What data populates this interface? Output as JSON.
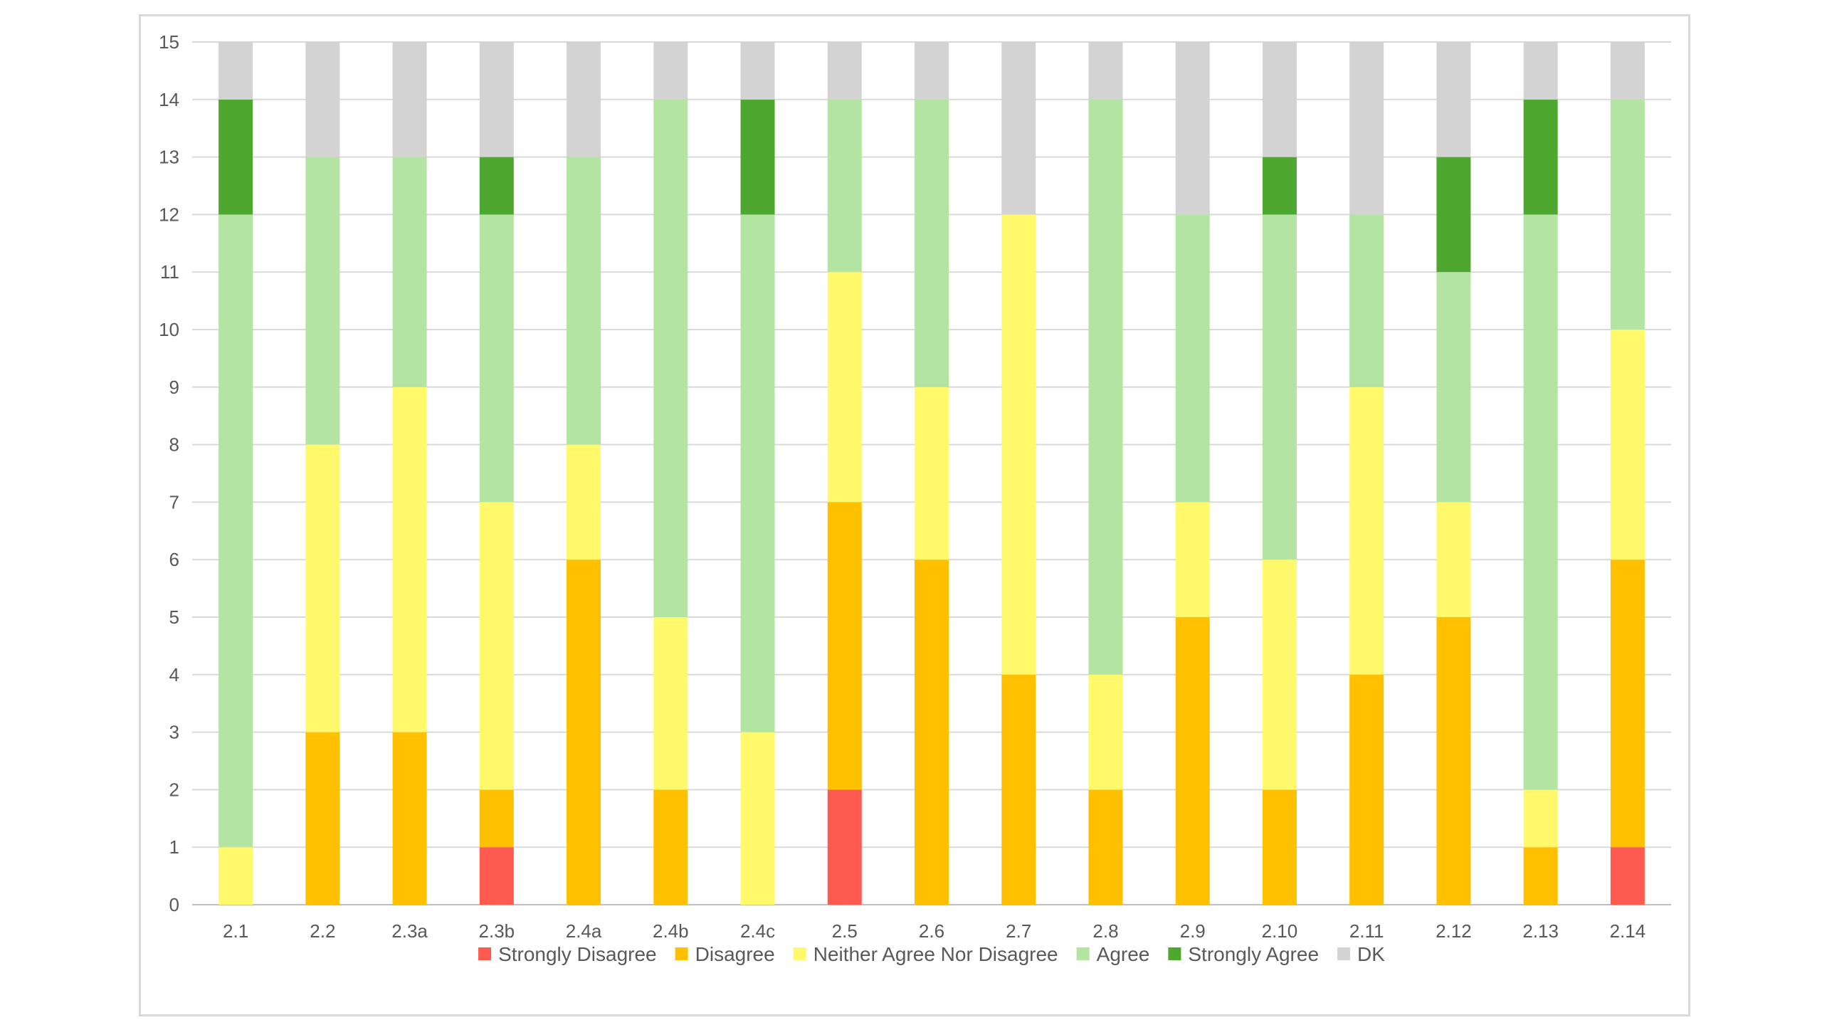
{
  "chart_data": {
    "type": "bar",
    "stacked": true,
    "title": "",
    "xlabel": "",
    "ylabel": "",
    "ylim": [
      0,
      15
    ],
    "y_ticks": [
      "0",
      "1",
      "2",
      "3",
      "4",
      "5",
      "6",
      "7",
      "8",
      "9",
      "10",
      "11",
      "12",
      "13",
      "14",
      "15"
    ],
    "grid": true,
    "legend_position": "bottom",
    "categories": [
      "2.1",
      "2.2",
      "2.3a",
      "2.3b",
      "2.4a",
      "2.4b",
      "2.4c",
      "2.5",
      "2.6",
      "2.7",
      "2.8",
      "2.9",
      "2.10",
      "2.11",
      "2.12",
      "2.13",
      "2.14"
    ],
    "series": [
      {
        "name": "Strongly Disagree",
        "color": "#ff5a4f",
        "values": [
          0,
          0,
          0,
          1,
          0,
          0,
          0,
          2,
          0,
          0,
          0,
          0,
          0,
          0,
          0,
          0,
          1
        ]
      },
      {
        "name": "Disagree",
        "color": "#ffc000",
        "values": [
          0,
          3,
          3,
          1,
          6,
          2,
          0,
          5,
          6,
          4,
          2,
          5,
          2,
          4,
          5,
          1,
          5
        ]
      },
      {
        "name": "Neither Agree Nor Disagree",
        "color": "#fff96b",
        "values": [
          1,
          5,
          6,
          5,
          2,
          3,
          3,
          4,
          3,
          8,
          2,
          2,
          4,
          5,
          2,
          1,
          4
        ]
      },
      {
        "name": "Agree",
        "color": "#b4e4a1",
        "values": [
          11,
          5,
          4,
          5,
          5,
          9,
          9,
          3,
          5,
          0,
          10,
          5,
          6,
          3,
          4,
          10,
          4
        ]
      },
      {
        "name": "Strongly Agree",
        "color": "#4ea72e",
        "values": [
          2,
          0,
          0,
          1,
          0,
          0,
          2,
          0,
          0,
          0,
          0,
          0,
          1,
          0,
          2,
          2,
          0
        ]
      },
      {
        "name": "DK",
        "color": "#d3d3d3",
        "values": [
          1,
          2,
          2,
          2,
          2,
          1,
          1,
          1,
          1,
          3,
          1,
          3,
          2,
          3,
          2,
          1,
          1
        ]
      }
    ]
  }
}
